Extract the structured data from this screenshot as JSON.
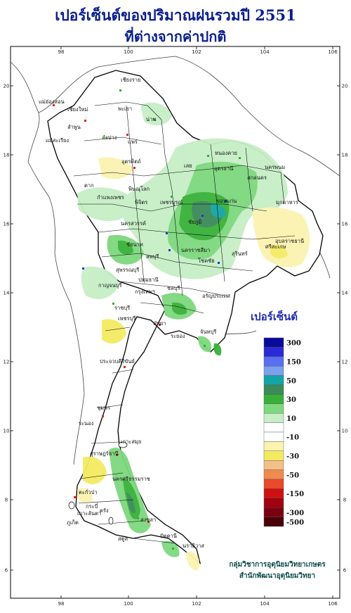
{
  "title_line1": "เปอร์เซ็นต์ของปริมาณฝนรวมปี  2551",
  "title_line2": "ที่ต่างจากค่าปกติ",
  "legend": {
    "title": "เปอร์เซ็นต์",
    "bins": [
      {
        "color": "#0a0a9a",
        "label": "300"
      },
      {
        "color": "#2a2ad6",
        "label": ""
      },
      {
        "color": "#5a6ef0",
        "label": "150"
      },
      {
        "color": "#7aa0ee",
        "label": ""
      },
      {
        "color": "#12a5a5",
        "label": "50"
      },
      {
        "color": "#3a8a5a",
        "label": ""
      },
      {
        "color": "#38b038",
        "label": "30"
      },
      {
        "color": "#7ed87e",
        "label": ""
      },
      {
        "color": "#c6efc6",
        "label": "10"
      },
      {
        "color": "#ffffff",
        "label": ""
      },
      {
        "color": "#ffffff",
        "label": "-10"
      },
      {
        "color": "#fbf3b0",
        "label": ""
      },
      {
        "color": "#f4ea62",
        "label": "-30"
      },
      {
        "color": "#f5bf8a",
        "label": ""
      },
      {
        "color": "#f08a50",
        "label": "-50"
      },
      {
        "color": "#e84a2a",
        "label": ""
      },
      {
        "color": "#d01010",
        "label": "-150"
      },
      {
        "color": "#a00010",
        "label": ""
      },
      {
        "color": "#7a0010",
        "label": "-300"
      },
      {
        "color": "#4a0008",
        "label": "-500"
      }
    ]
  },
  "axes": {
    "x_ticks": [
      "98",
      "100",
      "102",
      "104",
      "106"
    ],
    "y_ticks": [
      "20",
      "18",
      "16",
      "14",
      "12",
      "10",
      "8",
      "6"
    ]
  },
  "provinces": [
    "เชียงราย",
    "แม่ฮ่องสอน",
    "พะเยา",
    "เชียงใหม่",
    "ลำพูน",
    "น่าน",
    "ลำปาง",
    "แพร่",
    "แม่สะเรียง",
    "หนองคาย",
    "อุตรดิตถ์",
    "อุดรธานี",
    "นครพนม",
    "สกลนคร",
    "ตาก",
    "เลย",
    "พิษณุโลก",
    "มุกดาหาร",
    "กำแพงเพชร",
    "พิจิตร",
    "เพชรบูรณ์",
    "ขอนแก่น",
    "นครสวรรค์",
    "ชัยภูมิ",
    "อุบลราชธานี",
    "ชัยนาท",
    "ลพบุรี",
    "นครราชสีมา",
    "สุรินทร์",
    "โชคชัย",
    "ศรีสะเกษ",
    "สุพรรณบุรี",
    "กาญจนบุรี",
    "ปทุมธานี",
    "กรุงเทพฯ",
    "ราชบุรี",
    "ชลบุรี",
    "อรัญประเทศ",
    "เพชรบุรี",
    "จันทบุรี",
    "พัทยา",
    "ระยอง",
    "ประจวบคีรีขันธ์",
    "ชุมพร",
    "ระนอง",
    "เกาะสมุย",
    "สุราษฎร์ธานี",
    "ตะกั่วป่า",
    "นครศรีธรรมราช",
    "ภูเก็ต",
    "กระบี่",
    "ตรัง",
    "สงขลา",
    "ปัตตานี",
    "นราธิวาส",
    "สตูล",
    "เกาะลันตา"
  ],
  "credit_line1": "กลุ่มวิชาการอุตุนิยมวิทยาเกษตร",
  "credit_line2": "สำนักพัฒนาอุตุนิยมวิทยา"
}
